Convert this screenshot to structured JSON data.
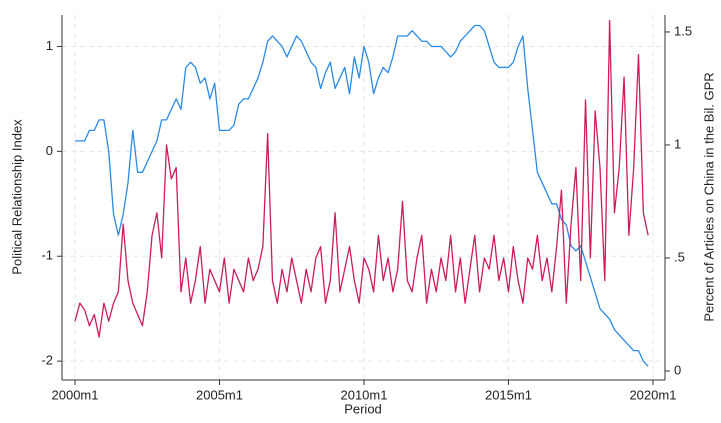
{
  "chart_data": {
    "type": "line",
    "xlabel": "Period",
    "ylabel": "Political Relationship Index",
    "y2label": "Percent of Articles on China in the Bil. GPR",
    "grid": true,
    "x": [
      480,
      482,
      484,
      486,
      488,
      490,
      492,
      494,
      496,
      498,
      500,
      502,
      504,
      506,
      508,
      510,
      512,
      514,
      516,
      518,
      520,
      522,
      524,
      526,
      528,
      530,
      532,
      534,
      536,
      538,
      540,
      542,
      544,
      546,
      548,
      550,
      552,
      554,
      556,
      558,
      560,
      562,
      564,
      566,
      568,
      570,
      572,
      574,
      576,
      578,
      580,
      582,
      584,
      586,
      588,
      590,
      592,
      594,
      596,
      598,
      600,
      602,
      604,
      606,
      608,
      610,
      612,
      614,
      616,
      618,
      620,
      622,
      624,
      626,
      628,
      630,
      632,
      634,
      636,
      638,
      640,
      642,
      644,
      646,
      648,
      650,
      652,
      654,
      656,
      658,
      660,
      662,
      664,
      666,
      668,
      670,
      672,
      674,
      676,
      678,
      680,
      682,
      684,
      686,
      688,
      690,
      692,
      694,
      696,
      698,
      700,
      702,
      704,
      706,
      708,
      710,
      712,
      714,
      716,
      718
    ],
    "series": [
      {
        "name": "Political Relationship Index",
        "color": "#2a8ae8",
        "axis": "y",
        "values": [
          0.1,
          0.1,
          0.1,
          0.2,
          0.2,
          0.3,
          0.3,
          0.0,
          -0.6,
          -0.8,
          -0.6,
          -0.3,
          0.2,
          -0.2,
          -0.2,
          -0.1,
          0.0,
          0.1,
          0.3,
          0.3,
          0.4,
          0.5,
          0.4,
          0.8,
          0.85,
          0.8,
          0.65,
          0.7,
          0.5,
          0.65,
          0.2,
          0.2,
          0.2,
          0.25,
          0.45,
          0.5,
          0.5,
          0.6,
          0.7,
          0.85,
          1.05,
          1.1,
          1.05,
          1.0,
          0.9,
          1.0,
          1.1,
          1.05,
          0.95,
          0.85,
          0.8,
          0.6,
          0.75,
          0.85,
          0.6,
          0.7,
          0.8,
          0.55,
          0.9,
          0.7,
          1.0,
          0.85,
          0.55,
          0.7,
          0.8,
          0.75,
          0.9,
          1.1,
          1.1,
          1.1,
          1.15,
          1.1,
          1.05,
          1.05,
          1.0,
          1.0,
          1.0,
          0.95,
          0.9,
          0.95,
          1.05,
          1.1,
          1.15,
          1.2,
          1.2,
          1.15,
          1.0,
          0.85,
          0.8,
          0.8,
          0.8,
          0.85,
          1.0,
          1.1,
          0.6,
          0.2,
          -0.2,
          -0.3,
          -0.4,
          -0.5,
          -0.5,
          -0.65,
          -0.7,
          -0.9,
          -0.95,
          -0.9,
          -1.05,
          -1.2,
          -1.35,
          -1.5,
          -1.55,
          -1.6,
          -1.7,
          -1.75,
          -1.8,
          -1.85,
          -1.9,
          -1.9,
          -2.0,
          -2.05
        ]
      },
      {
        "name": "Percent of Articles on China in the Bil. GPR",
        "color": "#cf1a5e",
        "axis": "y2",
        "values": [
          0.22,
          0.3,
          0.27,
          0.2,
          0.25,
          0.15,
          0.3,
          0.22,
          0.3,
          0.35,
          0.65,
          0.4,
          0.3,
          0.25,
          0.2,
          0.35,
          0.6,
          0.7,
          0.5,
          1.0,
          0.85,
          0.9,
          0.35,
          0.5,
          0.3,
          0.4,
          0.55,
          0.3,
          0.45,
          0.4,
          0.35,
          0.5,
          0.3,
          0.45,
          0.4,
          0.35,
          0.5,
          0.4,
          0.45,
          0.55,
          1.05,
          0.4,
          0.3,
          0.45,
          0.35,
          0.5,
          0.4,
          0.3,
          0.45,
          0.35,
          0.5,
          0.55,
          0.3,
          0.4,
          0.7,
          0.35,
          0.45,
          0.55,
          0.4,
          0.3,
          0.5,
          0.45,
          0.35,
          0.6,
          0.4,
          0.5,
          0.35,
          0.45,
          0.75,
          0.4,
          0.35,
          0.5,
          0.6,
          0.3,
          0.45,
          0.35,
          0.5,
          0.4,
          0.6,
          0.35,
          0.5,
          0.3,
          0.45,
          0.6,
          0.35,
          0.5,
          0.45,
          0.6,
          0.4,
          0.5,
          0.35,
          0.55,
          0.4,
          0.3,
          0.5,
          0.45,
          0.6,
          0.4,
          0.5,
          0.35,
          0.55,
          0.8,
          0.3,
          0.65,
          0.9,
          0.4,
          1.2,
          0.5,
          1.15,
          0.9,
          0.4,
          1.55,
          0.7,
          0.9,
          1.3,
          0.6,
          0.9,
          1.4,
          0.7,
          0.6
        ]
      }
    ],
    "xlim": [
      474.6,
      725
    ],
    "xticks": [
      {
        "value": 480,
        "label": "2000m1"
      },
      {
        "value": 540,
        "label": "2005m1"
      },
      {
        "value": 600,
        "label": "2010m1"
      },
      {
        "value": 660,
        "label": "2015m1"
      },
      {
        "value": 720,
        "label": "2020m1"
      }
    ],
    "ylim": [
      -2.18,
      1.3
    ],
    "yticks": [
      -2,
      -1,
      0,
      1
    ],
    "y2lim": [
      -0.04,
      1.575
    ],
    "y2ticks": [
      0,
      {
        "value": 0.5,
        "label": ".5"
      },
      1,
      1.5
    ]
  }
}
